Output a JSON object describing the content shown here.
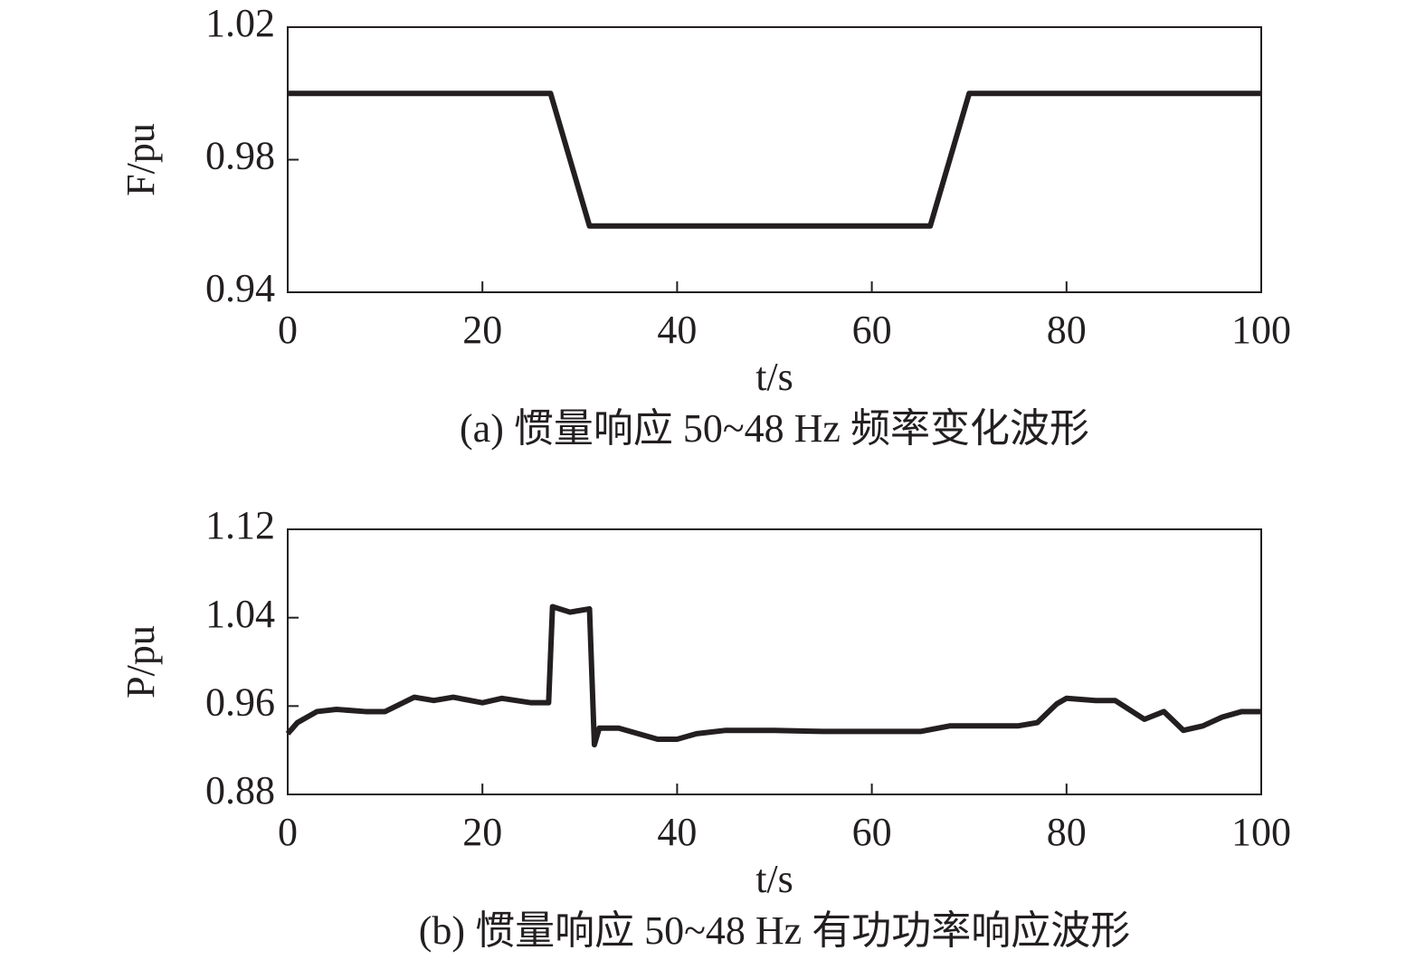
{
  "chart_data": [
    {
      "type": "line",
      "ylabel": "F/pu",
      "xlabel": "t/s",
      "caption": "(a) 惯量响应 50~48 Hz 频率变化波形",
      "x": [
        0,
        27,
        31,
        66,
        70,
        100
      ],
      "series": [
        {
          "color": "#231f20",
          "values": [
            1.0,
            1.0,
            0.96,
            0.96,
            1.0,
            1.0
          ]
        }
      ],
      "xlim": [
        0,
        100
      ],
      "xticks": [
        0,
        20,
        40,
        60,
        80,
        100
      ],
      "ylim": [
        0.94,
        1.02
      ],
      "yticks": [
        {
          "value": 0.94,
          "label": "0.94"
        },
        {
          "value": 0.98,
          "label": "0.98"
        },
        {
          "value": 1.02,
          "label": "1.02"
        }
      ]
    },
    {
      "type": "line",
      "ylabel": "P/pu",
      "xlabel": "t/s",
      "caption": "(b) 惯量响应 50~48 Hz 有功功率响应波形",
      "x": [
        0,
        1,
        3,
        5,
        8,
        10,
        13,
        15,
        17,
        20,
        22,
        25,
        26.8,
        27.2,
        29,
        31,
        31.5,
        32,
        34,
        36,
        38,
        40,
        42,
        45,
        50,
        55,
        60,
        65,
        68,
        70,
        75,
        77,
        79,
        80,
        83,
        85,
        88,
        90,
        92,
        94,
        96,
        98,
        100
      ],
      "series": [
        {
          "color": "#231f20",
          "values": [
            0.935,
            0.945,
            0.955,
            0.957,
            0.955,
            0.955,
            0.968,
            0.965,
            0.968,
            0.963,
            0.967,
            0.963,
            0.963,
            1.05,
            1.045,
            1.048,
            0.925,
            0.94,
            0.94,
            0.935,
            0.93,
            0.93,
            0.935,
            0.938,
            0.938,
            0.937,
            0.937,
            0.937,
            0.942,
            0.942,
            0.942,
            0.945,
            0.962,
            0.967,
            0.965,
            0.965,
            0.948,
            0.955,
            0.938,
            0.942,
            0.95,
            0.955,
            0.955
          ]
        }
      ],
      "xlim": [
        0,
        100
      ],
      "xticks": [
        0,
        20,
        40,
        60,
        80,
        100
      ],
      "ylim": [
        0.88,
        1.12
      ],
      "yticks": [
        {
          "value": 0.88,
          "label": "0.88"
        },
        {
          "value": 0.96,
          "label": "0.96"
        },
        {
          "value": 1.04,
          "label": "1.04"
        },
        {
          "value": 1.12,
          "label": "1.12"
        }
      ]
    }
  ]
}
